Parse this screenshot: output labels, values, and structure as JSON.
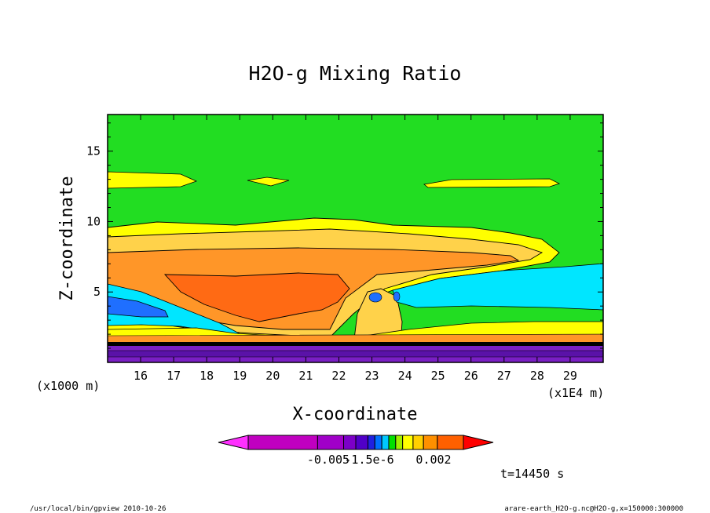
{
  "chart_data": {
    "type": "heatmap",
    "title": "H2O-g Mixing Ratio",
    "xlabel": "X-coordinate",
    "ylabel": "Z-coordinate",
    "x_unit_label": "(x1E4 m)",
    "y_unit_label": "(x1000 m)",
    "x_ticks": [
      16,
      17,
      18,
      19,
      20,
      21,
      22,
      23,
      24,
      25,
      26,
      27,
      28,
      29
    ],
    "y_ticks": [
      5,
      10,
      15
    ],
    "xlim": [
      15,
      30
    ],
    "ylim": [
      0,
      17.6
    ],
    "colorbar": {
      "labels": [
        "-0.005",
        "-1.5e-6",
        "0.002"
      ],
      "colors": [
        "#ff30ff",
        "#c000c0",
        "#a000c8",
        "#7c00c8",
        "#5000c8",
        "#2020e0",
        "#0070ff",
        "#00c8ff",
        "#00e000",
        "#a0f000",
        "#ffff00",
        "#ffd000",
        "#ff9000",
        "#ff6000",
        "#ff0000"
      ]
    },
    "time_label": "t=14450 s",
    "footer_left": "/usr/local/bin/gpview  2010-10-26",
    "footer_right": "arare-earth_H2O-g.nc@H2O-g,x=150000:300000",
    "regions": [
      {
        "name": "background",
        "color": "#22dd22"
      },
      {
        "name": "anvil-outer",
        "color": "#ffff00"
      },
      {
        "name": "anvil-mid",
        "color": "#ffd24a"
      },
      {
        "name": "anvil-core",
        "color": "#ff9628"
      },
      {
        "name": "plume-core",
        "color": "#ff6a14"
      },
      {
        "name": "cyan-layer",
        "color": "#00e6ff"
      },
      {
        "name": "blue-layer",
        "color": "#1f6fff"
      },
      {
        "name": "surface-layer",
        "color": "#7a1fc4"
      },
      {
        "name": "surface-layer-dark",
        "color": "#5a12a8"
      }
    ]
  }
}
